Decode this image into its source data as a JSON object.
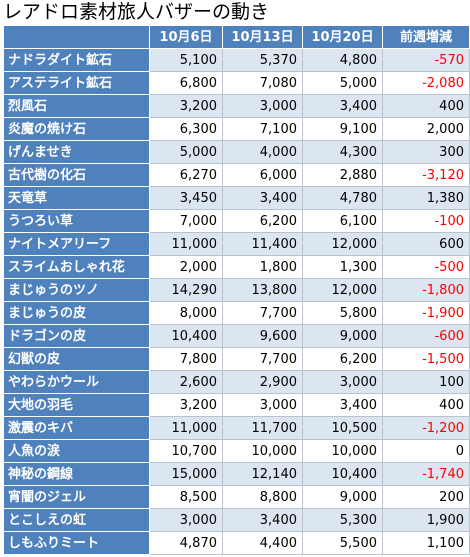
{
  "title": "レアドロ素材旅人バザーの動き",
  "headers": [
    "",
    "10月6日",
    "10月13日",
    "10月20日",
    "前週増減"
  ],
  "rows": [
    {
      "name": "ナドラダイト鉱石",
      "v": [
        "5,100",
        "5,370",
        "4,800",
        "-570"
      ]
    },
    {
      "name": "アステライト鉱石",
      "v": [
        "6,800",
        "7,080",
        "5,000",
        "-2,080"
      ]
    },
    {
      "name": "烈風石",
      "v": [
        "3,200",
        "3,000",
        "3,400",
        "400"
      ]
    },
    {
      "name": "炎魔の焼け石",
      "v": [
        "6,300",
        "7,100",
        "9,100",
        "2,000"
      ]
    },
    {
      "name": "げんませき",
      "v": [
        "5,000",
        "4,000",
        "4,300",
        "300"
      ]
    },
    {
      "name": "古代樹の化石",
      "v": [
        "6,270",
        "6,000",
        "2,880",
        "-3,120"
      ]
    },
    {
      "name": "天竜草",
      "v": [
        "3,450",
        "3,400",
        "4,780",
        "1,380"
      ]
    },
    {
      "name": "うつろい草",
      "v": [
        "7,000",
        "6,200",
        "6,100",
        "-100"
      ]
    },
    {
      "name": "ナイトメアリーフ",
      "v": [
        "11,000",
        "11,400",
        "12,000",
        "600"
      ]
    },
    {
      "name": "スライムおしゃれ花",
      "v": [
        "2,000",
        "1,800",
        "1,300",
        "-500"
      ]
    },
    {
      "name": "まじゅうのツノ",
      "v": [
        "14,290",
        "13,800",
        "12,000",
        "-1,800"
      ]
    },
    {
      "name": "まじゅうの皮",
      "v": [
        "8,000",
        "7,700",
        "5,800",
        "-1,900"
      ]
    },
    {
      "name": "ドラゴンの皮",
      "v": [
        "10,400",
        "9,600",
        "9,000",
        "-600"
      ]
    },
    {
      "name": "幻獣の皮",
      "v": [
        "7,800",
        "7,700",
        "6,200",
        "-1,500"
      ]
    },
    {
      "name": "やわらかウール",
      "v": [
        "2,600",
        "2,900",
        "3,000",
        "100"
      ]
    },
    {
      "name": "大地の羽毛",
      "v": [
        "3,200",
        "3,000",
        "3,400",
        "400"
      ]
    },
    {
      "name": "激震のキバ",
      "v": [
        "11,000",
        "11,700",
        "10,500",
        "-1,200"
      ]
    },
    {
      "name": "人魚の涙",
      "v": [
        "10,700",
        "10,000",
        "10,000",
        "0"
      ]
    },
    {
      "name": "神秘の鋼線",
      "v": [
        "15,000",
        "12,140",
        "10,400",
        "-1,740"
      ]
    },
    {
      "name": "宵闇のジェル",
      "v": [
        "8,500",
        "8,800",
        "9,000",
        "200"
      ]
    },
    {
      "name": "とこしえの虹",
      "v": [
        "3,000",
        "3,400",
        "5,300",
        "1,900"
      ]
    },
    {
      "name": "しもふりミート",
      "v": [
        "4,870",
        "4,400",
        "5,500",
        "1,100"
      ]
    }
  ],
  "colors": {
    "header_bg": "#4f81bd",
    "band_bg": "#dce6f1",
    "negative_text": "#ff0000"
  }
}
